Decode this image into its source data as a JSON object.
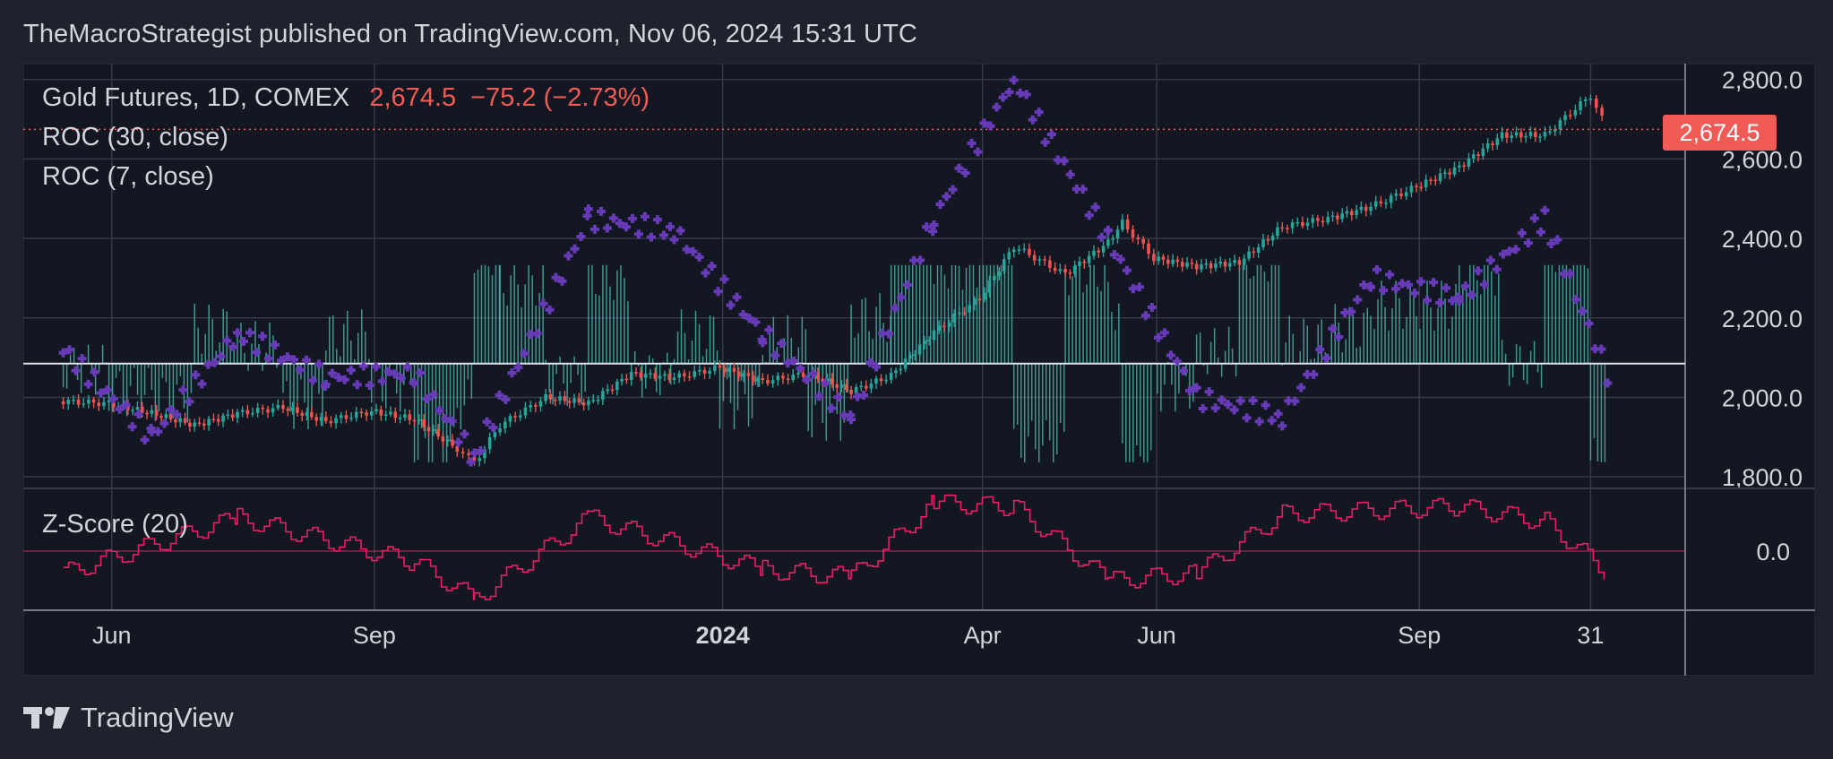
{
  "header": {
    "publisher_line": "TheMacroStrategist published on TradingView.com, Nov 06, 2024 15:31 UTC"
  },
  "legend": {
    "symbol": "Gold Futures, 1D, COMEX",
    "last_price": "2,674.5",
    "change": "−75.2 (−2.73%)",
    "roc30": "ROC (30, close)",
    "roc7": "ROC (7, close)",
    "zscore": "Z-Score (20)"
  },
  "price_tag": "2,674.5",
  "footer": {
    "brand": "TradingView"
  },
  "colors": {
    "background": "#131722",
    "frame": "#1e222d",
    "grid": "#363a45",
    "up": "#26a69a",
    "down": "#ef5350",
    "roc30": "#673ab7",
    "roc7_hist": "#4db6ac",
    "zscore": "#e91e63",
    "price_line": "#f05c55"
  },
  "chart_data": {
    "type": "candlestick",
    "instrument": "Gold Futures, 1D, COMEX",
    "price_axis": {
      "ticks": [
        "2,800.0",
        "2,600.0",
        "2,400.0",
        "2,200.0",
        "2,000.0",
        "1,800.0"
      ],
      "tick_values": [
        2800,
        2600,
        2400,
        2200,
        2000,
        1800
      ],
      "range": [
        1780,
        2840
      ]
    },
    "zscore_axis": {
      "ticks": [
        "0.0"
      ],
      "tick_values": [
        0
      ],
      "range": [
        -1.6,
        1.6
      ]
    },
    "time_axis": {
      "ticks": [
        "Jun",
        "Sep",
        "2024",
        "Apr",
        "Jun",
        "Sep",
        "31"
      ],
      "bold": [
        false,
        false,
        true,
        false,
        false,
        false,
        false
      ]
    },
    "last_price": 2674.5,
    "price_series": [
      {
        "date": "2023-05-15",
        "close": 1990
      },
      {
        "date": "2023-05-31",
        "close": 1985
      },
      {
        "date": "2023-06-15",
        "close": 1960
      },
      {
        "date": "2023-06-30",
        "close": 1930
      },
      {
        "date": "2023-07-15",
        "close": 1960
      },
      {
        "date": "2023-07-31",
        "close": 1975
      },
      {
        "date": "2023-08-15",
        "close": 1940
      },
      {
        "date": "2023-08-31",
        "close": 1965
      },
      {
        "date": "2023-09-15",
        "close": 1945
      },
      {
        "date": "2023-09-30",
        "close": 1870
      },
      {
        "date": "2023-10-06",
        "close": 1835
      },
      {
        "date": "2023-10-15",
        "close": 1930
      },
      {
        "date": "2023-10-31",
        "close": 2000
      },
      {
        "date": "2023-11-15",
        "close": 1985
      },
      {
        "date": "2023-11-30",
        "close": 2060
      },
      {
        "date": "2023-12-15",
        "close": 2050
      },
      {
        "date": "2023-12-31",
        "close": 2075
      },
      {
        "date": "2024-01-15",
        "close": 2040
      },
      {
        "date": "2024-01-31",
        "close": 2060
      },
      {
        "date": "2024-02-15",
        "close": 2015
      },
      {
        "date": "2024-02-29",
        "close": 2055
      },
      {
        "date": "2024-03-15",
        "close": 2165
      },
      {
        "date": "2024-03-31",
        "close": 2250
      },
      {
        "date": "2024-04-12",
        "close": 2380
      },
      {
        "date": "2024-04-30",
        "close": 2310
      },
      {
        "date": "2024-05-15",
        "close": 2390
      },
      {
        "date": "2024-05-20",
        "close": 2440
      },
      {
        "date": "2024-05-31",
        "close": 2350
      },
      {
        "date": "2024-06-15",
        "close": 2330
      },
      {
        "date": "2024-06-30",
        "close": 2340
      },
      {
        "date": "2024-07-15",
        "close": 2430
      },
      {
        "date": "2024-07-31",
        "close": 2450
      },
      {
        "date": "2024-08-15",
        "close": 2480
      },
      {
        "date": "2024-08-31",
        "close": 2530
      },
      {
        "date": "2024-09-15",
        "close": 2580
      },
      {
        "date": "2024-09-30",
        "close": 2660
      },
      {
        "date": "2024-10-15",
        "close": 2660
      },
      {
        "date": "2024-10-31",
        "close": 2760
      },
      {
        "date": "2024-11-06",
        "close": 2674.5
      }
    ],
    "roc30_series": [
      {
        "date": "2023-05-15",
        "value": 2120
      },
      {
        "date": "2023-06-15",
        "value": 1900
      },
      {
        "date": "2023-07-15",
        "value": 2160
      },
      {
        "date": "2023-08-15",
        "value": 2050
      },
      {
        "date": "2023-09-15",
        "value": 2060
      },
      {
        "date": "2023-10-06",
        "value": 1850
      },
      {
        "date": "2023-11-15",
        "value": 2450
      },
      {
        "date": "2023-12-15",
        "value": 2420
      },
      {
        "date": "2024-01-15",
        "value": 2160
      },
      {
        "date": "2024-02-15",
        "value": 1950
      },
      {
        "date": "2024-03-15",
        "value": 2450
      },
      {
        "date": "2024-04-12",
        "value": 2800
      },
      {
        "date": "2024-05-15",
        "value": 2400
      },
      {
        "date": "2024-06-15",
        "value": 2000
      },
      {
        "date": "2024-07-15",
        "value": 1950
      },
      {
        "date": "2024-08-15",
        "value": 2300
      },
      {
        "date": "2024-09-15",
        "value": 2250
      },
      {
        "date": "2024-10-15",
        "value": 2450
      },
      {
        "date": "2024-11-06",
        "value": 2060
      }
    ],
    "zscore_series": [
      {
        "date": "2023-05-15",
        "value": -0.6
      },
      {
        "date": "2023-07-15",
        "value": 0.9
      },
      {
        "date": "2023-09-15",
        "value": -0.3
      },
      {
        "date": "2023-10-06",
        "value": -1.3
      },
      {
        "date": "2023-11-15",
        "value": 0.9
      },
      {
        "date": "2024-01-15",
        "value": -0.5
      },
      {
        "date": "2024-02-15",
        "value": -0.7
      },
      {
        "date": "2024-03-15",
        "value": 1.3
      },
      {
        "date": "2024-04-12",
        "value": 1.2
      },
      {
        "date": "2024-05-15",
        "value": -0.8
      },
      {
        "date": "2024-06-15",
        "value": -0.6
      },
      {
        "date": "2024-07-15",
        "value": 1.0
      },
      {
        "date": "2024-09-15",
        "value": 1.2
      },
      {
        "date": "2024-10-15",
        "value": 0.8
      },
      {
        "date": "2024-11-06",
        "value": -0.6
      }
    ]
  }
}
